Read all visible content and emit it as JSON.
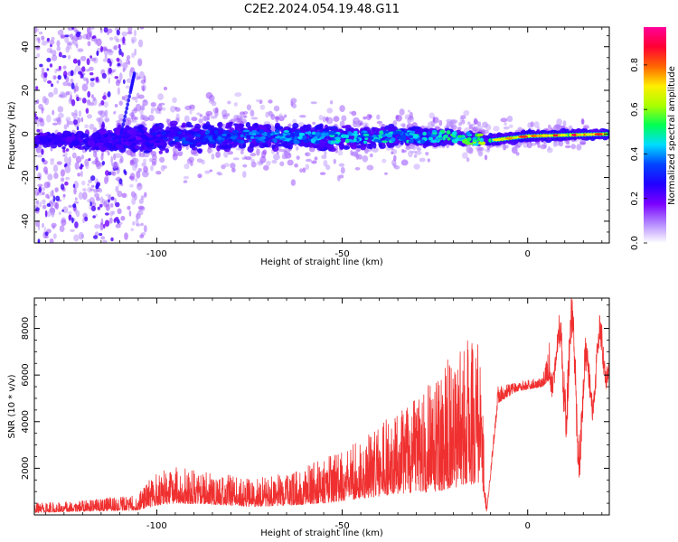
{
  "figure_title": "C2E2.2024.054.19.48.G11",
  "chart_data": [
    {
      "type": "heatmap",
      "title": "",
      "xlabel": "Height of straight line (km)",
      "ylabel": "Frequency (Hz)",
      "xlim": [
        -133,
        22
      ],
      "ylim": [
        -50,
        49
      ],
      "xticks": [
        -100,
        -50,
        0
      ],
      "yticks": [
        -40,
        -20,
        0,
        20,
        40
      ],
      "grid": false,
      "colormap": [
        "#ffffff",
        "#b388ff",
        "#7a00ff",
        "#2200ff",
        "#0044ff",
        "#00ddff",
        "#00ff55",
        "#aaff00",
        "#ffee00",
        "#ff6600",
        "#ff0033",
        "#ff0099"
      ],
      "colorbar": {
        "label": "Normalized spectral amplitude",
        "ticks": [
          0.0,
          0.2,
          0.4,
          0.6,
          0.8
        ],
        "range": [
          0,
          0.97
        ]
      },
      "ridge": {
        "center_hz": [
          [
            -133,
            -3
          ],
          [
            -100,
            -2
          ],
          [
            -75,
            -1
          ],
          [
            -50,
            -1.5
          ],
          [
            -25,
            -1
          ],
          [
            -10,
            -3
          ],
          [
            0,
            -1
          ],
          [
            22,
            0
          ]
        ],
        "halfwidth_hz": [
          [
            -133,
            3
          ],
          [
            -100,
            7
          ],
          [
            -50,
            6
          ],
          [
            -20,
            4
          ],
          [
            -10,
            2.5
          ],
          [
            22,
            2
          ]
        ],
        "amplitude": [
          [
            -133,
            0.2
          ],
          [
            -105,
            0.25
          ],
          [
            -90,
            0.35
          ],
          [
            -50,
            0.45
          ],
          [
            -25,
            0.45
          ],
          [
            -12,
            0.6
          ],
          [
            -5,
            0.8
          ],
          [
            5,
            0.9
          ],
          [
            22,
            0.85
          ]
        ]
      },
      "streak": [
        [
          -110,
          -3
        ],
        [
          -107,
          20
        ],
        [
          -106,
          28
        ]
      ]
    },
    {
      "type": "line",
      "title": "",
      "xlabel": "Height of straight line (km)",
      "ylabel": "SNR (10 * v/v)",
      "xlim": [
        -133,
        22
      ],
      "ylim": [
        0,
        9300
      ],
      "xticks": [
        -100,
        -50,
        0
      ],
      "yticks": [
        2000,
        4000,
        6000,
        8000
      ],
      "grid": false,
      "color": "#f03030",
      "envelope": {
        "x": [
          -133,
          -120,
          -105,
          -100,
          -95,
          -85,
          -75,
          -65,
          -55,
          -45,
          -35,
          -25,
          -18,
          -13,
          -11,
          -8,
          -3,
          4,
          6,
          8,
          10,
          12,
          14,
          17,
          20,
          22
        ],
        "base": [
          100,
          150,
          200,
          400,
          500,
          450,
          350,
          400,
          500,
          700,
          900,
          1000,
          1200,
          1400,
          100,
          4800,
          5300,
          5500,
          5800,
          5000,
          4500,
          3500,
          2500,
          4500,
          5500,
          6000
        ],
        "peak": [
          500,
          600,
          900,
          1900,
          2100,
          1800,
          1600,
          1800,
          2400,
          3200,
          4500,
          5800,
          7600,
          7500,
          300,
          5500,
          5700,
          5900,
          7800,
          7600,
          9300,
          8500,
          6500,
          7200,
          8100,
          7900
        ]
      }
    }
  ]
}
